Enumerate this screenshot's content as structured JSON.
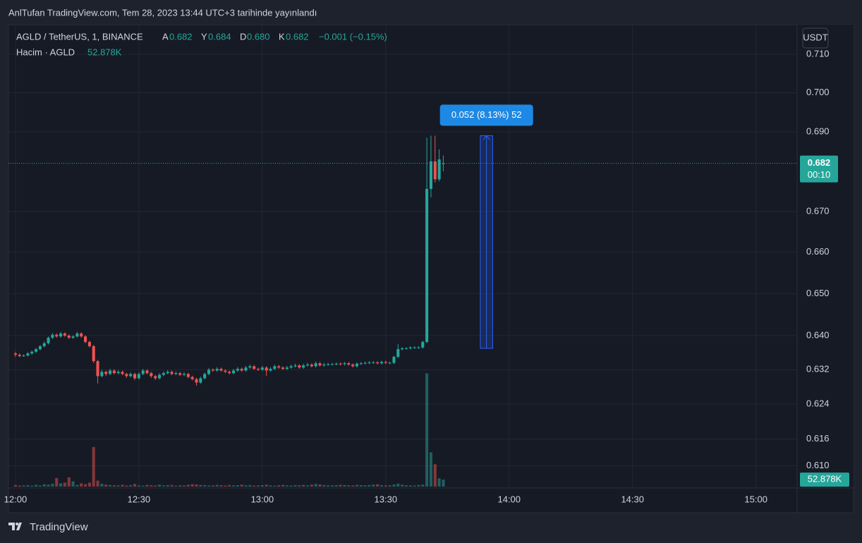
{
  "header": {
    "title": "AnlTufan TradingView.com, Tem 28, 2023 13:44 UTC+3 tarihinde yayınlandı",
    "brand": "TradingView"
  },
  "chart_data": {
    "type": "candlestick",
    "symbol": "AGLD / TetherUS, 1, BINANCE",
    "legend_keys": [
      "A",
      "Y",
      "D",
      "K"
    ],
    "legend_values": [
      "0.682",
      "0.684",
      "0.680",
      "0.682"
    ],
    "change": "−0.001 (−0.15%)",
    "volume_name": "Hacim · AGLD",
    "volume_last_label": "52.878K",
    "currency": "USDT",
    "countdown": "00:10",
    "up_color": "#26a69a",
    "down_color": "#ef5350",
    "log_scale": true,
    "grid": true,
    "xlim": [
      718.3,
      910
    ],
    "xticks": [
      {
        "value": 720,
        "label": "12:00"
      },
      {
        "value": 750,
        "label": "12:30"
      },
      {
        "value": 780,
        "label": "13:00"
      },
      {
        "value": 810,
        "label": "13:30"
      },
      {
        "value": 840,
        "label": "14:00"
      },
      {
        "value": 870,
        "label": "14:30"
      },
      {
        "value": 900,
        "label": "15:00"
      }
    ],
    "ylim": [
      0.605,
      0.718
    ],
    "yticks": [
      {
        "value": 0.71,
        "label": "0.710"
      },
      {
        "value": 0.7,
        "label": "0.700"
      },
      {
        "value": 0.69,
        "label": "0.690"
      },
      {
        "value": 0.67,
        "label": "0.670"
      },
      {
        "value": 0.66,
        "label": "0.660"
      },
      {
        "value": 0.65,
        "label": "0.650"
      },
      {
        "value": 0.64,
        "label": "0.640"
      },
      {
        "value": 0.632,
        "label": "0.632"
      },
      {
        "value": 0.624,
        "label": "0.624"
      },
      {
        "value": 0.616,
        "label": "0.616"
      },
      {
        "value": 0.61,
        "label": "0.610"
      }
    ],
    "volume_lim": [
      0,
      1500000
    ],
    "x": [
      720,
      721,
      722,
      723,
      724,
      725,
      726,
      727,
      728,
      729,
      730,
      731,
      732,
      733,
      734,
      735,
      736,
      737,
      738,
      739,
      740,
      741,
      742,
      743,
      744,
      745,
      746,
      747,
      748,
      749,
      750,
      751,
      752,
      753,
      754,
      755,
      756,
      757,
      758,
      759,
      760,
      761,
      762,
      763,
      764,
      765,
      766,
      767,
      768,
      769,
      770,
      771,
      772,
      773,
      774,
      775,
      776,
      777,
      778,
      779,
      780,
      781,
      782,
      783,
      784,
      785,
      786,
      787,
      788,
      789,
      790,
      791,
      792,
      793,
      794,
      795,
      796,
      797,
      798,
      799,
      800,
      801,
      802,
      803,
      804,
      805,
      806,
      807,
      808,
      809,
      810,
      811,
      812,
      813,
      814,
      815,
      816,
      817,
      818,
      819,
      820,
      821,
      822,
      823,
      824
    ],
    "ohlc": [
      [
        0.6358,
        0.6362,
        0.635,
        0.6355
      ],
      [
        0.6355,
        0.6358,
        0.6349,
        0.6352
      ],
      [
        0.6352,
        0.6356,
        0.635,
        0.6353
      ],
      [
        0.6353,
        0.6361,
        0.6351,
        0.6358
      ],
      [
        0.6358,
        0.6365,
        0.6355,
        0.6362
      ],
      [
        0.6362,
        0.6371,
        0.6359,
        0.6368
      ],
      [
        0.6368,
        0.6378,
        0.6365,
        0.6375
      ],
      [
        0.6375,
        0.6386,
        0.6372,
        0.6382
      ],
      [
        0.6382,
        0.6398,
        0.6379,
        0.6395
      ],
      [
        0.6395,
        0.6406,
        0.6392,
        0.6402
      ],
      [
        0.6402,
        0.6405,
        0.6395,
        0.6398
      ],
      [
        0.6398,
        0.6409,
        0.6395,
        0.6405
      ],
      [
        0.6405,
        0.6408,
        0.6397,
        0.64
      ],
      [
        0.64,
        0.6403,
        0.6392,
        0.6395
      ],
      [
        0.6395,
        0.6401,
        0.6392,
        0.6398
      ],
      [
        0.6398,
        0.6409,
        0.6395,
        0.6405
      ],
      [
        0.6405,
        0.6408,
        0.6395,
        0.6398
      ],
      [
        0.6398,
        0.6401,
        0.6382,
        0.6385
      ],
      [
        0.6385,
        0.6388,
        0.6372,
        0.6375
      ],
      [
        0.6375,
        0.6378,
        0.6336,
        0.634
      ],
      [
        0.634,
        0.6343,
        0.6288,
        0.6305
      ],
      [
        0.6305,
        0.632,
        0.6302,
        0.6315
      ],
      [
        0.6315,
        0.6318,
        0.6305,
        0.631
      ],
      [
        0.631,
        0.6322,
        0.6307,
        0.6318
      ],
      [
        0.6318,
        0.6321,
        0.6309,
        0.6312
      ],
      [
        0.6312,
        0.6319,
        0.6309,
        0.6315
      ],
      [
        0.6315,
        0.6318,
        0.6307,
        0.631
      ],
      [
        0.631,
        0.6313,
        0.6301,
        0.6305
      ],
      [
        0.6305,
        0.6314,
        0.6302,
        0.631
      ],
      [
        0.631,
        0.6313,
        0.6296,
        0.63
      ],
      [
        0.63,
        0.6314,
        0.6297,
        0.631
      ],
      [
        0.631,
        0.6322,
        0.6307,
        0.6318
      ],
      [
        0.6318,
        0.6321,
        0.6309,
        0.6312
      ],
      [
        0.6312,
        0.6315,
        0.6301,
        0.6305
      ],
      [
        0.6305,
        0.6308,
        0.6296,
        0.63
      ],
      [
        0.63,
        0.6312,
        0.6297,
        0.6308
      ],
      [
        0.6308,
        0.6316,
        0.6305,
        0.6312
      ],
      [
        0.6312,
        0.6319,
        0.6309,
        0.6315
      ],
      [
        0.6315,
        0.6318,
        0.6307,
        0.631
      ],
      [
        0.631,
        0.6316,
        0.6307,
        0.6312
      ],
      [
        0.6312,
        0.6315,
        0.6305,
        0.6308
      ],
      [
        0.6308,
        0.6314,
        0.6305,
        0.631
      ],
      [
        0.631,
        0.6313,
        0.63,
        0.6303
      ],
      [
        0.6303,
        0.6306,
        0.6295,
        0.6298
      ],
      [
        0.6298,
        0.6301,
        0.6283,
        0.629
      ],
      [
        0.629,
        0.6304,
        0.6287,
        0.63
      ],
      [
        0.63,
        0.6314,
        0.6297,
        0.631
      ],
      [
        0.631,
        0.6324,
        0.6307,
        0.632
      ],
      [
        0.632,
        0.6323,
        0.6315,
        0.6318
      ],
      [
        0.6318,
        0.6326,
        0.6315,
        0.6322
      ],
      [
        0.6322,
        0.6325,
        0.6315,
        0.6318
      ],
      [
        0.6318,
        0.6321,
        0.6312,
        0.6315
      ],
      [
        0.6315,
        0.6318,
        0.6309,
        0.6312
      ],
      [
        0.6312,
        0.6322,
        0.6309,
        0.6318
      ],
      [
        0.6318,
        0.6326,
        0.6315,
        0.6322
      ],
      [
        0.6322,
        0.6325,
        0.6315,
        0.6318
      ],
      [
        0.6318,
        0.6329,
        0.6315,
        0.6325
      ],
      [
        0.6325,
        0.6332,
        0.6322,
        0.6328
      ],
      [
        0.6328,
        0.6331,
        0.6319,
        0.6322
      ],
      [
        0.6322,
        0.6325,
        0.6317,
        0.632
      ],
      [
        0.632,
        0.6329,
        0.6317,
        0.6325
      ],
      [
        0.6325,
        0.6328,
        0.6305,
        0.6318
      ],
      [
        0.6318,
        0.6326,
        0.6315,
        0.6322
      ],
      [
        0.6322,
        0.6332,
        0.6319,
        0.6328
      ],
      [
        0.6328,
        0.6331,
        0.6322,
        0.6325
      ],
      [
        0.6325,
        0.6328,
        0.6319,
        0.6322
      ],
      [
        0.6322,
        0.6329,
        0.6319,
        0.6325
      ],
      [
        0.6325,
        0.6332,
        0.6322,
        0.6328
      ],
      [
        0.6328,
        0.6334,
        0.6325,
        0.633
      ],
      [
        0.633,
        0.6333,
        0.6322,
        0.6325
      ],
      [
        0.6325,
        0.6334,
        0.6322,
        0.633
      ],
      [
        0.633,
        0.6336,
        0.6327,
        0.6332
      ],
      [
        0.6332,
        0.6335,
        0.6325,
        0.6328
      ],
      [
        0.6328,
        0.6339,
        0.6325,
        0.6335
      ],
      [
        0.6335,
        0.6338,
        0.6327,
        0.633
      ],
      [
        0.633,
        0.6336,
        0.6327,
        0.6332
      ],
      [
        0.6332,
        0.6336,
        0.6329,
        0.6333
      ],
      [
        0.6333,
        0.6336,
        0.633,
        0.6333
      ],
      [
        0.6333,
        0.6337,
        0.633,
        0.6334
      ],
      [
        0.6334,
        0.6337,
        0.633,
        0.6333
      ],
      [
        0.6333,
        0.6338,
        0.633,
        0.6335
      ],
      [
        0.6335,
        0.6338,
        0.6329,
        0.6332
      ],
      [
        0.6332,
        0.6335,
        0.6325,
        0.6328
      ],
      [
        0.6328,
        0.6337,
        0.6325,
        0.6334
      ],
      [
        0.6334,
        0.6338,
        0.6331,
        0.6335
      ],
      [
        0.6335,
        0.6339,
        0.6332,
        0.6336
      ],
      [
        0.6336,
        0.634,
        0.6333,
        0.6337
      ],
      [
        0.6337,
        0.634,
        0.6334,
        0.6337
      ],
      [
        0.6337,
        0.634,
        0.6332,
        0.6335
      ],
      [
        0.6335,
        0.6341,
        0.6332,
        0.6338
      ],
      [
        0.6338,
        0.6341,
        0.6333,
        0.6336
      ],
      [
        0.6336,
        0.6339,
        0.6333,
        0.6336
      ],
      [
        0.6336,
        0.6353,
        0.6333,
        0.635
      ],
      [
        0.635,
        0.638,
        0.6347,
        0.6368
      ],
      [
        0.6368,
        0.6373,
        0.6365,
        0.637
      ],
      [
        0.637,
        0.6373,
        0.6367,
        0.637
      ],
      [
        0.637,
        0.6375,
        0.6367,
        0.6372
      ],
      [
        0.6372,
        0.6375,
        0.6369,
        0.6372
      ],
      [
        0.6372,
        0.6375,
        0.6369,
        0.6372
      ],
      [
        0.6372,
        0.6388,
        0.6369,
        0.6385
      ],
      [
        0.6385,
        0.6885,
        0.6382,
        0.6756
      ],
      [
        0.6756,
        0.689,
        0.6735,
        0.6825
      ],
      [
        0.6825,
        0.689,
        0.6772,
        0.678
      ],
      [
        0.678,
        0.6855,
        0.6775,
        0.683
      ],
      [
        0.682,
        0.684,
        0.68,
        0.682
      ]
    ],
    "volume": [
      12000,
      8000,
      9000,
      11000,
      7000,
      14000,
      9000,
      18000,
      15000,
      22000,
      65000,
      25000,
      30000,
      70000,
      40000,
      12000,
      25000,
      18000,
      30000,
      300000,
      45000,
      22000,
      15000,
      12000,
      10000,
      9000,
      14000,
      8000,
      11000,
      20000,
      9000,
      7000,
      13000,
      10000,
      8000,
      15000,
      9000,
      11000,
      12000,
      7000,
      10000,
      9000,
      14000,
      18000,
      16000,
      12000,
      11000,
      8000,
      9000,
      13000,
      10000,
      8000,
      12000,
      9000,
      11000,
      15000,
      10000,
      12000,
      8000,
      9000,
      11000,
      14000,
      9000,
      7000,
      10000,
      12000,
      9000,
      8000,
      11000,
      10000,
      13000,
      9000,
      15000,
      20000,
      16000,
      12000,
      10000,
      9000,
      11000,
      14000,
      12000,
      10000,
      9000,
      13000,
      11000,
      10000,
      12000,
      15000,
      18000,
      11000,
      9000,
      10000,
      16000,
      22000,
      14000,
      10000,
      9000,
      8000,
      12000,
      15000,
      860000,
      260000,
      170000,
      63000,
      52878
    ],
    "annotation": {
      "label": "0.052 (8.13%) 52",
      "x": [
        833,
        836
      ],
      "y": [
        0.637,
        0.689
      ]
    }
  }
}
